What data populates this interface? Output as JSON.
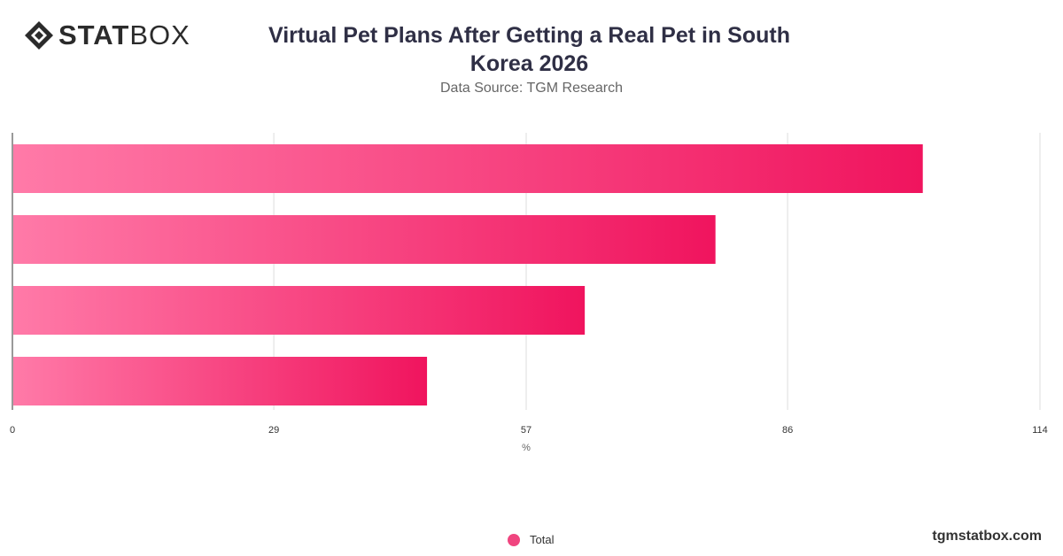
{
  "brand": {
    "logo_bold": "STAT",
    "logo_light": "BOX",
    "footer_url": "tgmstatbox.com"
  },
  "chart_data": {
    "type": "bar",
    "orientation": "horizontal",
    "title": "Virtual Pet Plans After Getting a Real Pet in South Korea 2026",
    "subtitle": "Data Source: TGM Research",
    "categories": [
      "",
      "",
      "",
      ""
    ],
    "series": [
      {
        "name": "Total",
        "values": [
          101,
          78,
          63.5,
          46
        ]
      }
    ],
    "xlabel": "%",
    "ylabel": "",
    "xlim": [
      0,
      114
    ],
    "xticks": [
      "0",
      "29",
      "57",
      "86",
      "114"
    ],
    "grid": true,
    "legend_position": "bottom-center",
    "colors": {
      "bar_start": "#ff7aa8",
      "bar_end": "#f0145e",
      "grid": "#dddddd",
      "axis": "#333333",
      "legend_swatch": "#f0457f"
    }
  }
}
